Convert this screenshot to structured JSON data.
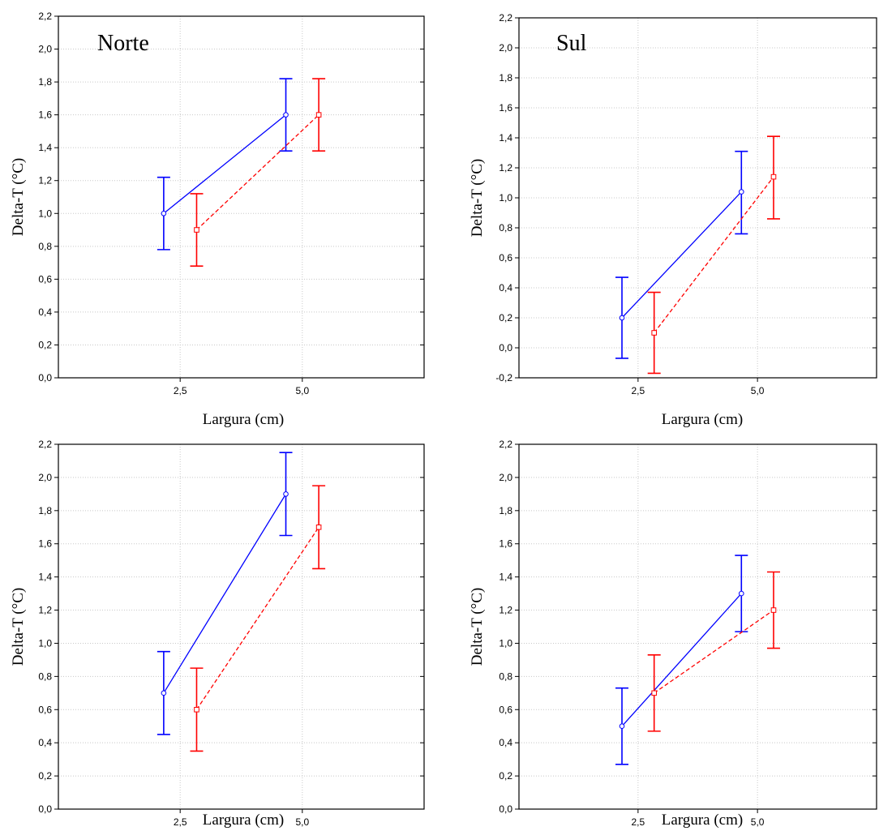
{
  "chart_data": [
    {
      "type": "line",
      "title": "Norte",
      "xlabel": "Largura (cm)",
      "ylabel": "Delta-T (°C)",
      "categories": [
        "2,5",
        "5,0"
      ],
      "ylim": [
        0.0,
        2.2
      ],
      "yticks": [
        "0,0",
        "0,2",
        "0,4",
        "0,6",
        "0,8",
        "1,0",
        "1,2",
        "1,4",
        "1,6",
        "1,8",
        "2,0",
        "2,2"
      ],
      "grid": true,
      "series": [
        {
          "values": [
            1.0,
            1.6
          ],
          "lower": [
            0.78,
            1.38
          ],
          "upper": [
            1.22,
            1.82
          ],
          "color": "#0000ff",
          "dash": "solid",
          "marker": "circle"
        },
        {
          "values": [
            0.9,
            1.6
          ],
          "lower": [
            0.68,
            1.38
          ],
          "upper": [
            1.12,
            1.82
          ],
          "color": "#ff0000",
          "dash": "dashed",
          "marker": "square"
        }
      ]
    },
    {
      "type": "line",
      "title": "Sul",
      "xlabel": "Largura (cm)",
      "ylabel": "Delta-T (°C)",
      "categories": [
        "2,5",
        "5,0"
      ],
      "ylim": [
        -0.2,
        2.2
      ],
      "yticks": [
        "-0,2",
        "0,0",
        "0,2",
        "0,4",
        "0,6",
        "0,8",
        "1,0",
        "1,2",
        "1,4",
        "1,6",
        "1,8",
        "2,0",
        "2,2"
      ],
      "grid": true,
      "series": [
        {
          "values": [
            0.2,
            1.04
          ],
          "lower": [
            -0.07,
            0.76
          ],
          "upper": [
            0.47,
            1.31
          ],
          "color": "#0000ff",
          "dash": "solid",
          "marker": "circle"
        },
        {
          "values": [
            0.1,
            1.14
          ],
          "lower": [
            -0.17,
            0.86
          ],
          "upper": [
            0.37,
            1.41
          ],
          "color": "#ff0000",
          "dash": "dashed",
          "marker": "square"
        }
      ]
    },
    {
      "type": "line",
      "title": "",
      "xlabel": "Largura (cm)",
      "ylabel": "Delta-T (°C)",
      "categories": [
        "2,5",
        "5,0"
      ],
      "ylim": [
        0.0,
        2.2
      ],
      "yticks": [
        "0,0",
        "0,2",
        "0,4",
        "0,6",
        "0,8",
        "1,0",
        "1,2",
        "1,4",
        "1,6",
        "1,8",
        "2,0",
        "2,2"
      ],
      "grid": true,
      "series": [
        {
          "values": [
            0.7,
            1.9
          ],
          "lower": [
            0.45,
            1.65
          ],
          "upper": [
            0.95,
            2.15
          ],
          "color": "#0000ff",
          "dash": "solid",
          "marker": "circle"
        },
        {
          "values": [
            0.6,
            1.7
          ],
          "lower": [
            0.35,
            1.45
          ],
          "upper": [
            0.85,
            1.95
          ],
          "color": "#ff0000",
          "dash": "dashed",
          "marker": "square"
        }
      ]
    },
    {
      "type": "line",
      "title": "",
      "xlabel": "Largura (cm)",
      "ylabel": "Delta-T (°C)",
      "categories": [
        "2,5",
        "5,0"
      ],
      "ylim": [
        0.0,
        2.2
      ],
      "yticks": [
        "0,0",
        "0,2",
        "0,4",
        "0,6",
        "0,8",
        "1,0",
        "1,2",
        "1,4",
        "1,6",
        "1,8",
        "2,0",
        "2,2"
      ],
      "grid": true,
      "series": [
        {
          "values": [
            0.5,
            1.3
          ],
          "lower": [
            0.27,
            1.07
          ],
          "upper": [
            0.73,
            1.53
          ],
          "color": "#0000ff",
          "dash": "solid",
          "marker": "circle"
        },
        {
          "values": [
            0.7,
            1.2
          ],
          "lower": [
            0.47,
            0.97
          ],
          "upper": [
            0.93,
            1.43
          ],
          "color": "#ff0000",
          "dash": "dashed",
          "marker": "square"
        }
      ]
    }
  ]
}
